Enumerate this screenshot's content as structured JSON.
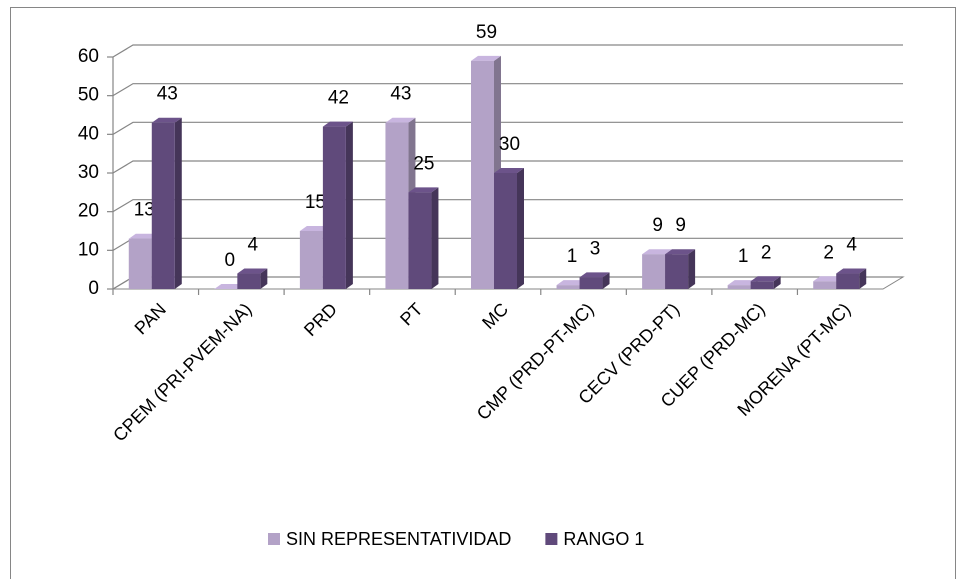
{
  "chart_data": {
    "type": "bar3d",
    "categories": [
      "PAN",
      "CPEM (PRI-PVEM-NA)",
      "PRD",
      "PT",
      "MC",
      "CMP (PRD-PT-MC)",
      "CECV (PRD-PT)",
      "CUEP (PRD-MC)",
      "MORENA (PT-MC)"
    ],
    "series": [
      {
        "name": "SIN REPRESENTATIVIDAD",
        "color": "#b3a2c7",
        "values": [
          13,
          0,
          15,
          43,
          59,
          1,
          9,
          1,
          2
        ]
      },
      {
        "name": "RANGO 1",
        "color": "#604a7b",
        "values": [
          43,
          4,
          42,
          25,
          30,
          3,
          9,
          2,
          4
        ]
      }
    ],
    "ylim": [
      0,
      60
    ],
    "yticks": [
      0,
      10,
      20,
      30,
      40,
      50,
      60
    ],
    "grid": true,
    "legend": "bottom"
  }
}
